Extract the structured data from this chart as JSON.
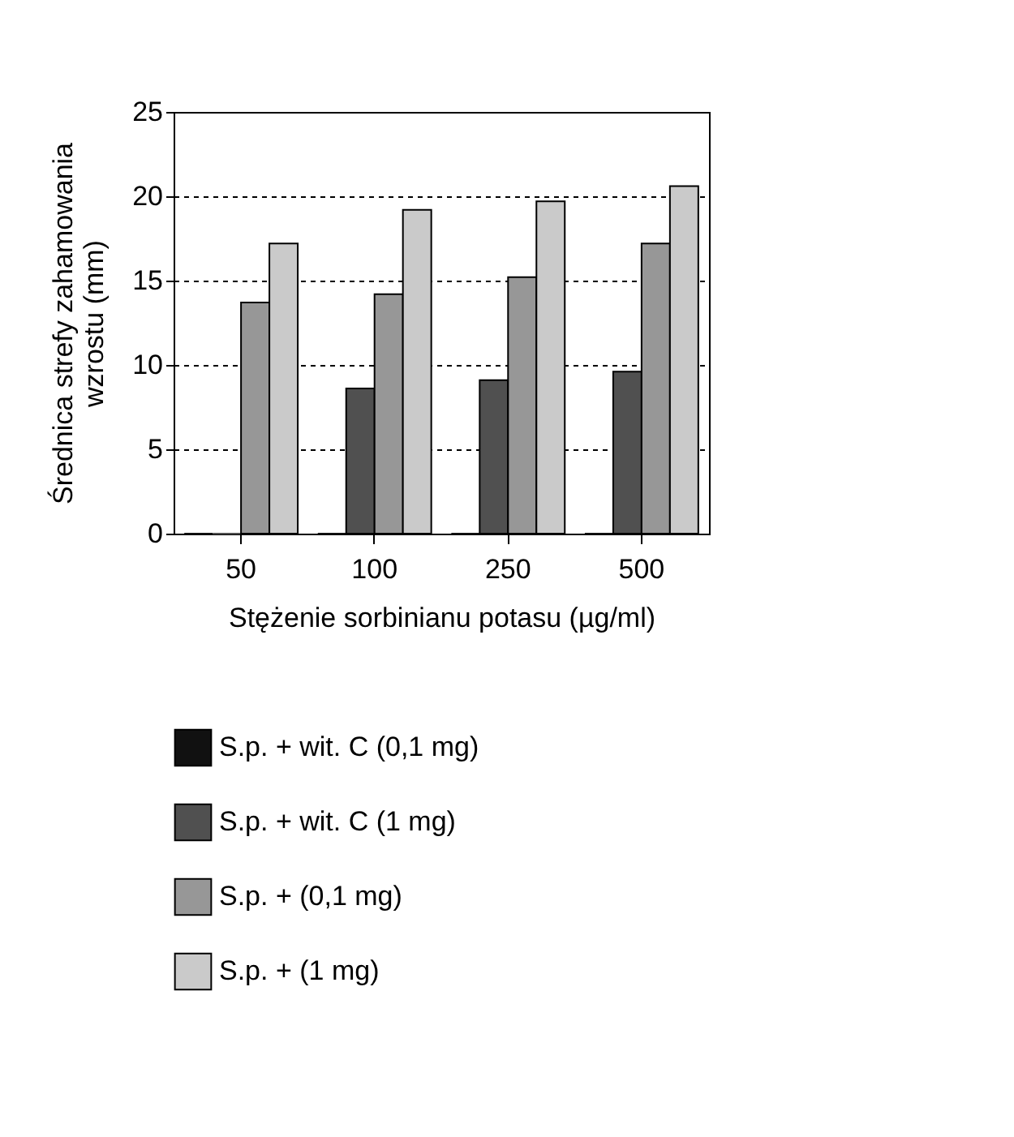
{
  "chart_data": {
    "type": "bar",
    "xlabel": "Stężenie sorbinianu potasu (µg/ml)",
    "ylabel": "Średnica strefy zahamowania wzrostu (mm)",
    "categories": [
      "50",
      "100",
      "250",
      "500"
    ],
    "series": [
      {
        "name": "S.p. + wit. C (0,1 mg)",
        "color": "#111111",
        "values": [
          0,
          0,
          0,
          0
        ]
      },
      {
        "name": "S.p. + wit. C (1 mg)",
        "color": "#505050",
        "values": [
          0,
          8.6,
          9.1,
          9.6
        ]
      },
      {
        "name": "S.p. + (0,1 mg)",
        "color": "#979797",
        "values": [
          13.7,
          14.2,
          15.2,
          17.2
        ]
      },
      {
        "name": "S.p. + (1 mg)",
        "color": "#cacaca",
        "values": [
          17.2,
          19.2,
          19.7,
          20.6
        ]
      }
    ],
    "ylim": [
      0,
      25
    ],
    "yticks": [
      0,
      5,
      10,
      15,
      20,
      25
    ],
    "grid": "y",
    "legend": "bottom"
  }
}
